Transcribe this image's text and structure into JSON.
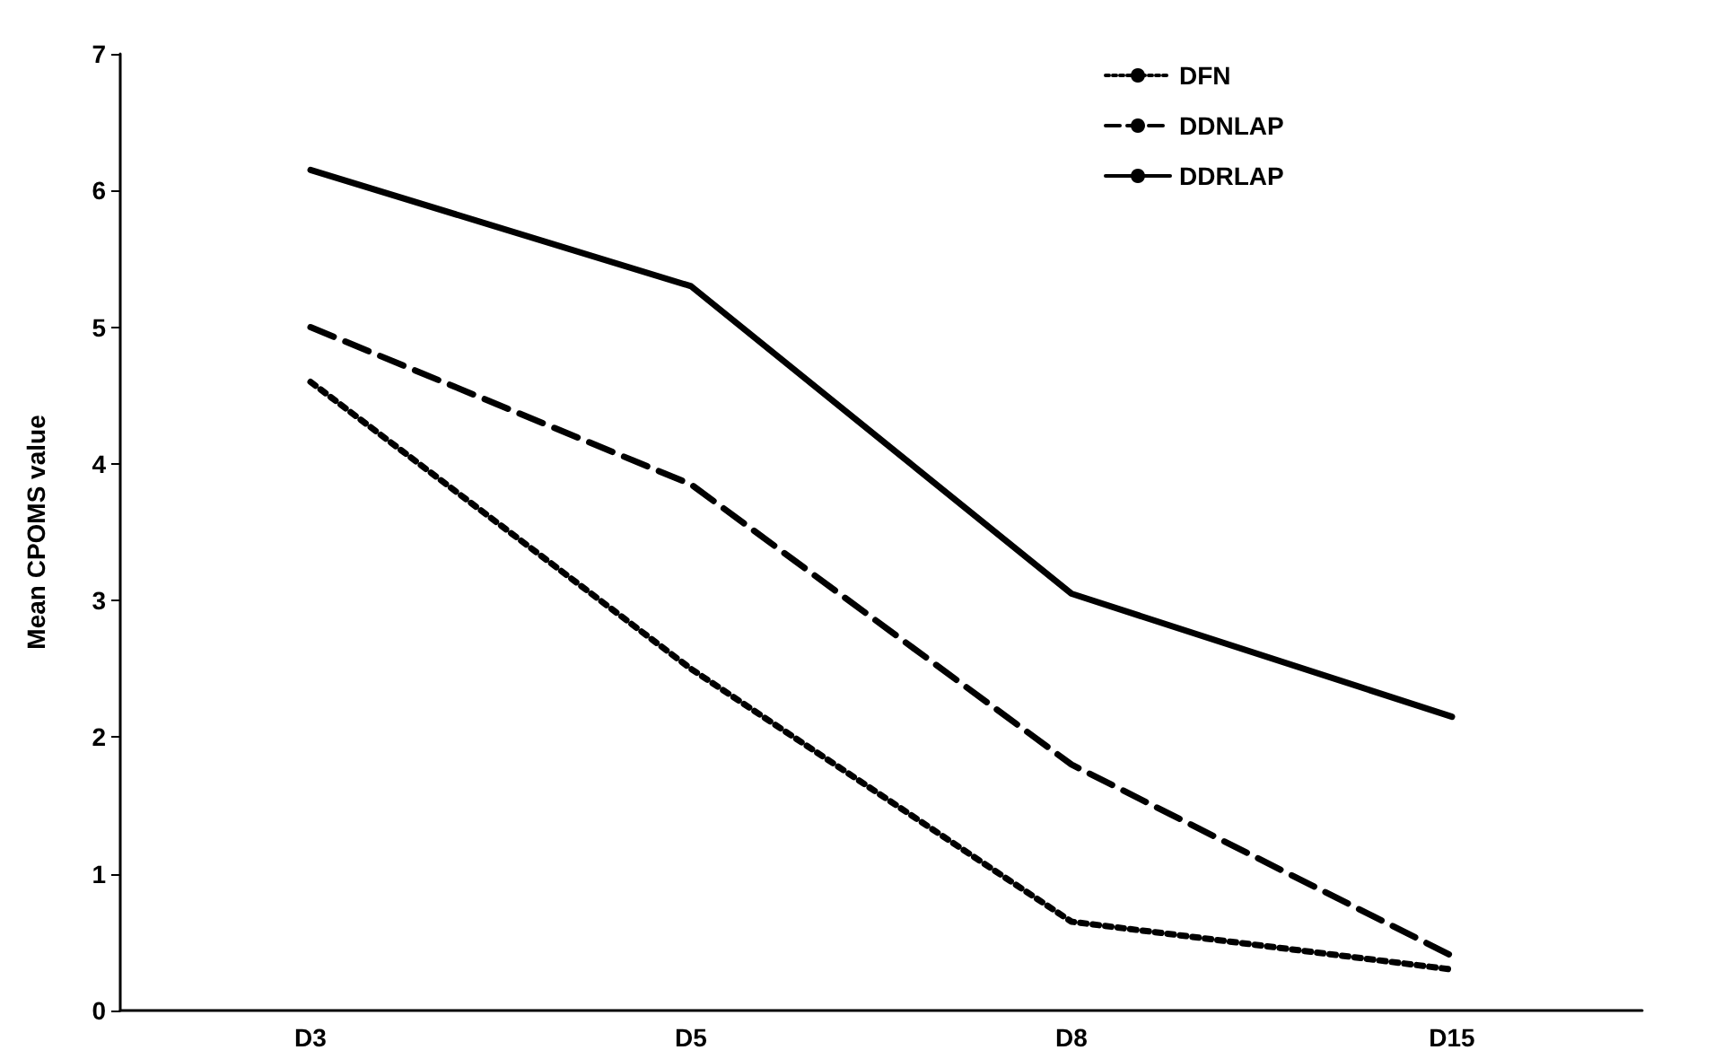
{
  "chart_data": {
    "type": "line",
    "ylabel": "Mean CPOMS value",
    "categories": [
      "D3",
      "D5",
      "D8",
      "D15"
    ],
    "series": [
      {
        "name": "DFN",
        "color": "#000000",
        "line_style": "dotted",
        "values": [
          4.6,
          2.5,
          0.65,
          0.3
        ]
      },
      {
        "name": "DDNLAP",
        "color": "#000000",
        "line_style": "dashed",
        "values": [
          5.0,
          3.85,
          1.8,
          0.4
        ]
      },
      {
        "name": "DDRLAP",
        "color": "#000000",
        "line_style": "solid",
        "values": [
          6.15,
          5.3,
          3.05,
          2.15
        ]
      }
    ],
    "ylim": [
      0,
      7
    ],
    "yticks": [
      0,
      1,
      2,
      3,
      4,
      5,
      6,
      7
    ],
    "grid": false,
    "legend": "top right",
    "marker": "none"
  }
}
